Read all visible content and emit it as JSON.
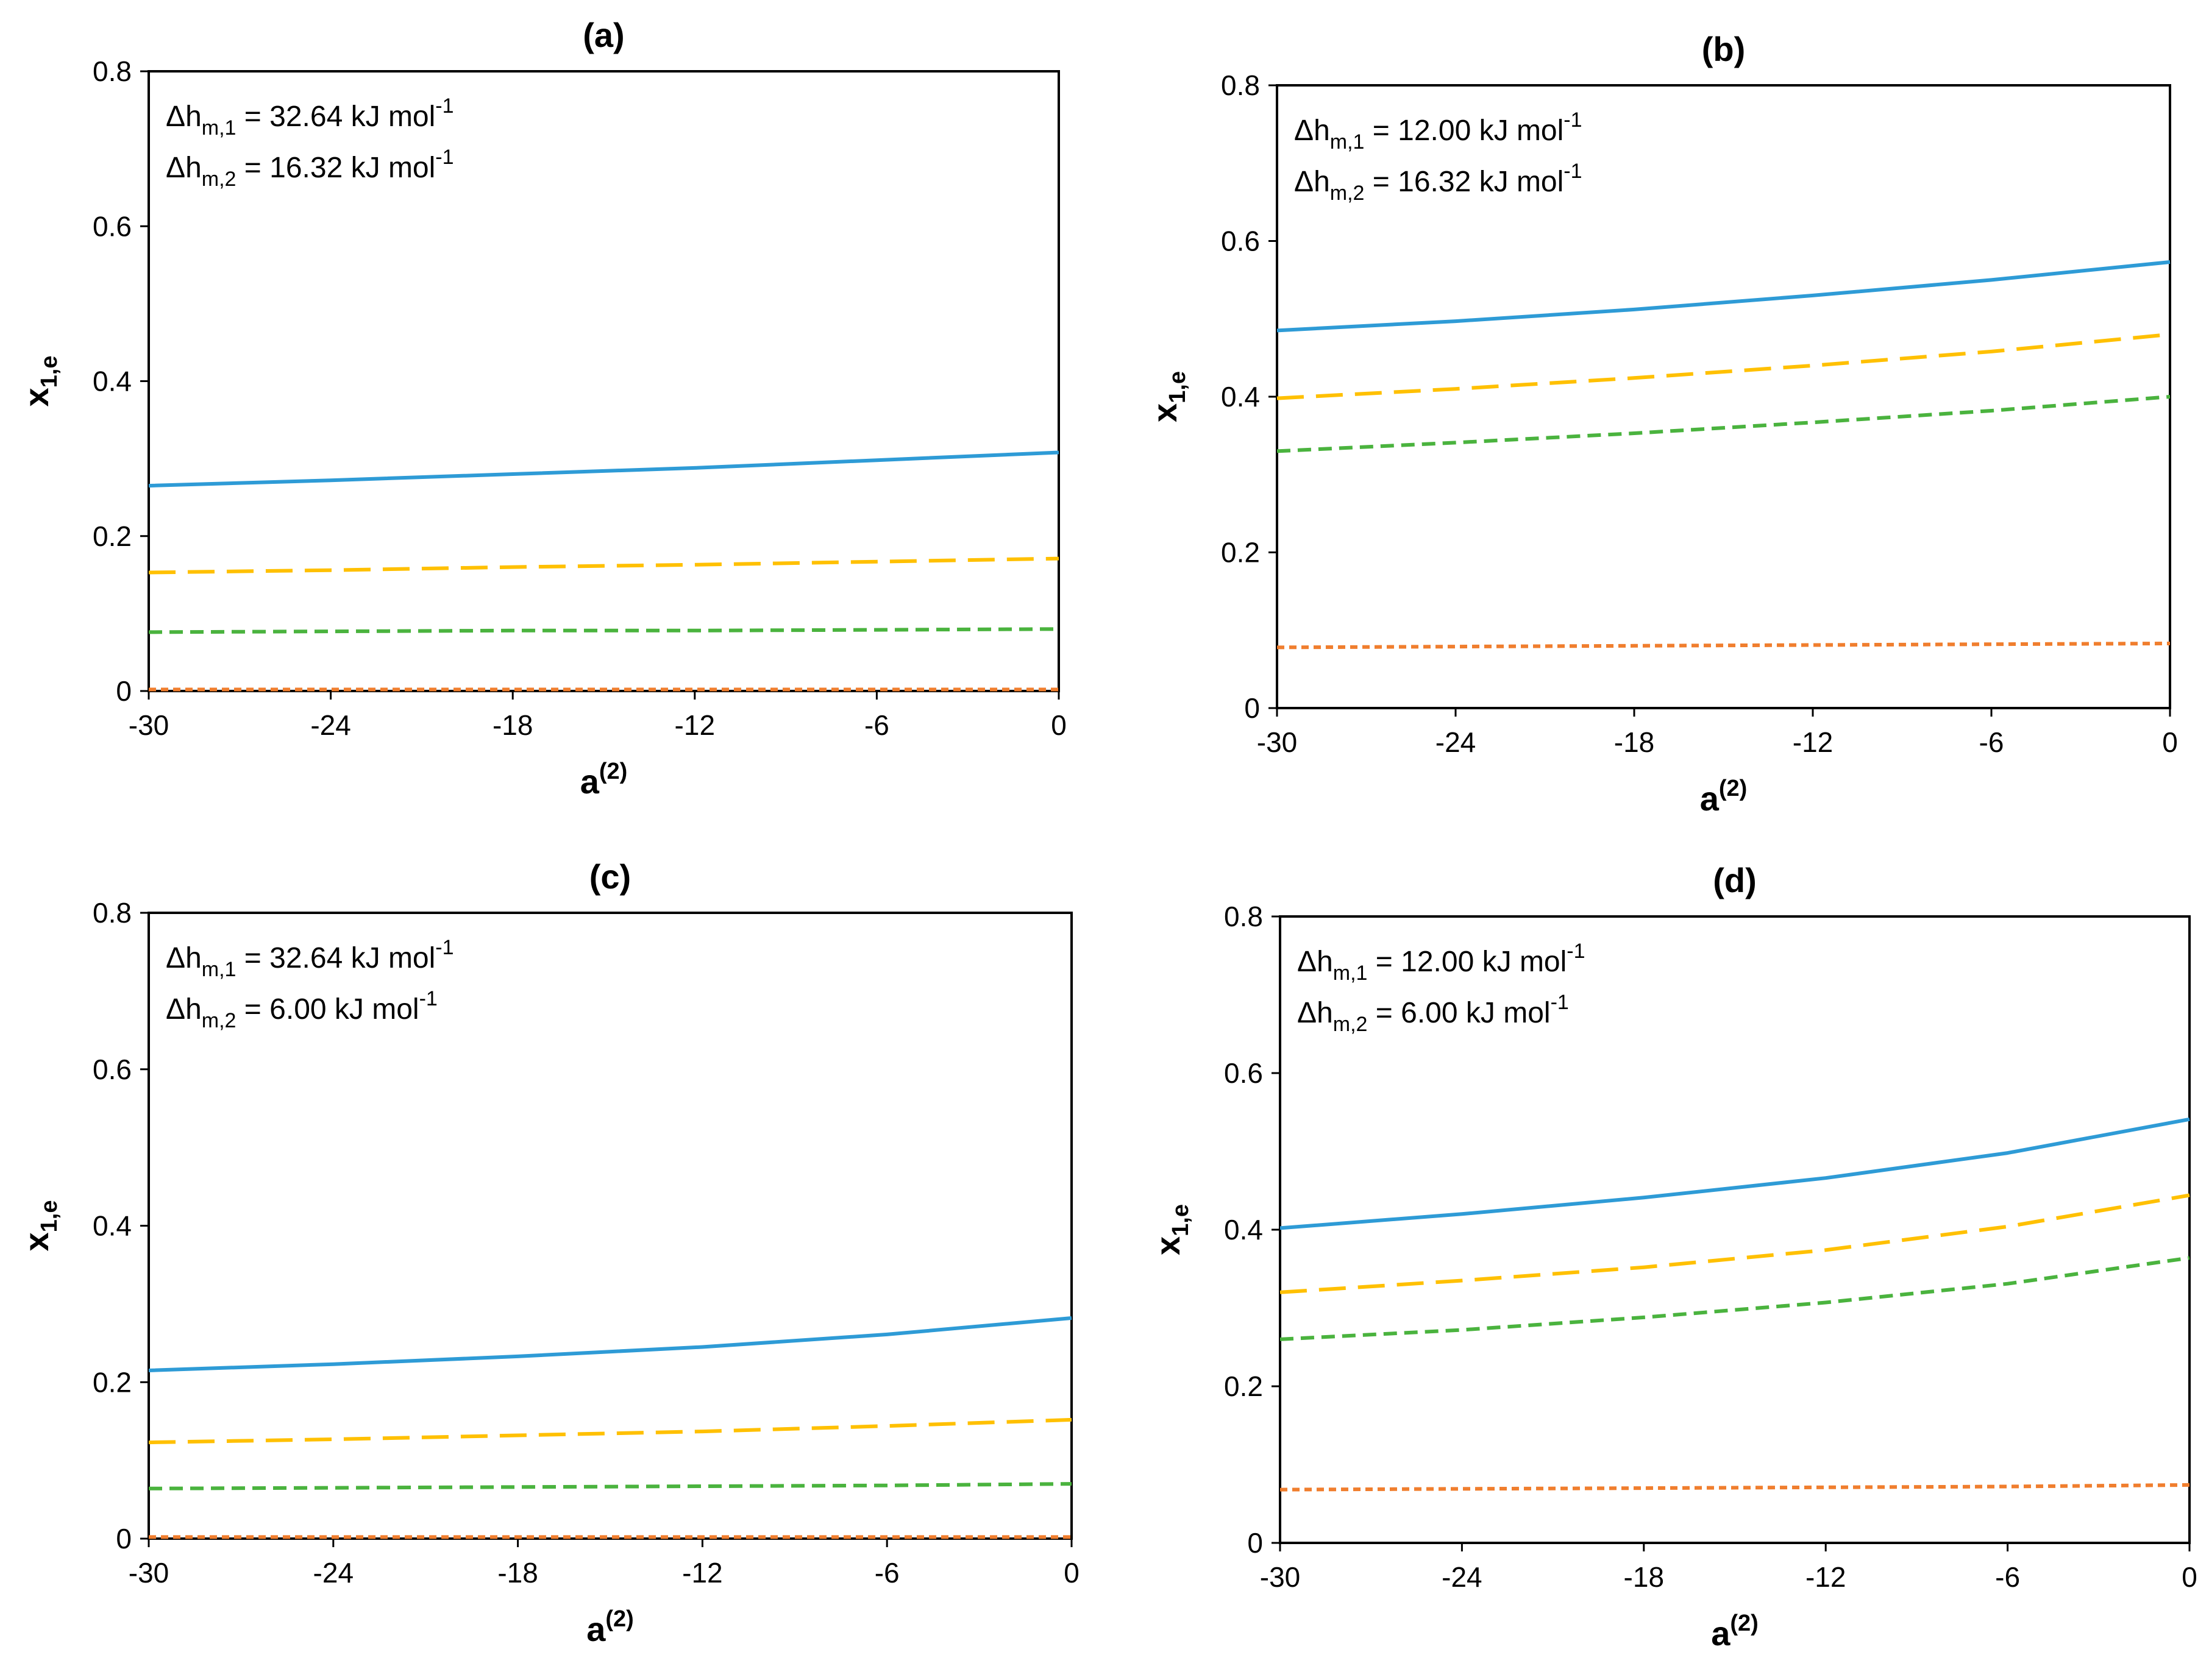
{
  "colors": {
    "series1": "#2e9bd6",
    "series2": "#ffc000",
    "series3": "#4ab33e",
    "series4": "#f07e2e"
  },
  "chart_data": [
    {
      "type": "line",
      "title": "(a)",
      "xlabel": "a",
      "xlabel_sup": "(2)",
      "ylabel": "x",
      "ylabel_sub": "1,e",
      "xlim": [
        -30,
        0
      ],
      "ylim": [
        0,
        0.8
      ],
      "xticks": [
        "-30",
        "-24",
        "-18",
        "-12",
        "-6",
        "0"
      ],
      "yticks": [
        "0",
        "0.2",
        "0.4",
        "0.6",
        "0.8"
      ],
      "grid": false,
      "annotations": [
        {
          "pre": "Δh",
          "sub": "m,1",
          "mid": " = 32.64 kJ mol",
          "sup": "-1"
        },
        {
          "pre": "Δh",
          "sub": "m,2",
          "mid": " = 16.32 kJ mol",
          "sup": "-1"
        }
      ],
      "x": [
        -30,
        -24,
        -18,
        -12,
        -6,
        0
      ],
      "series": [
        {
          "style": "solid",
          "values": [
            0.265,
            0.272,
            0.28,
            0.288,
            0.298,
            0.308
          ]
        },
        {
          "style": "long-dash",
          "values": [
            0.153,
            0.156,
            0.16,
            0.163,
            0.167,
            0.171
          ]
        },
        {
          "style": "dash",
          "values": [
            0.076,
            0.077,
            0.078,
            0.078,
            0.079,
            0.08
          ]
        },
        {
          "style": "dot",
          "values": [
            0.002,
            0.002,
            0.002,
            0.002,
            0.002,
            0.002
          ]
        }
      ]
    },
    {
      "type": "line",
      "title": "(b)",
      "xlabel": "a",
      "xlabel_sup": "(2)",
      "ylabel": "x",
      "ylabel_sub": "1,e",
      "xlim": [
        -30,
        0
      ],
      "ylim": [
        0,
        0.8
      ],
      "xticks": [
        "-30",
        "-24",
        "-18",
        "-12",
        "-6",
        "0"
      ],
      "yticks": [
        "0",
        "0.2",
        "0.4",
        "0.6",
        "0.8"
      ],
      "grid": false,
      "annotations": [
        {
          "pre": "Δh",
          "sub": "m,1",
          "mid": " = 12.00 kJ mol",
          "sup": "-1"
        },
        {
          "pre": "Δh",
          "sub": "m,2",
          "mid": " = 16.32 kJ mol",
          "sup": "-1"
        }
      ],
      "x": [
        -30,
        -24,
        -18,
        -12,
        -6,
        0
      ],
      "series": [
        {
          "style": "solid",
          "values": [
            0.485,
            0.497,
            0.512,
            0.53,
            0.55,
            0.573
          ]
        },
        {
          "style": "long-dash",
          "values": [
            0.398,
            0.41,
            0.424,
            0.44,
            0.458,
            0.48
          ]
        },
        {
          "style": "dash",
          "values": [
            0.33,
            0.341,
            0.353,
            0.367,
            0.382,
            0.4
          ]
        },
        {
          "style": "dot",
          "values": [
            0.078,
            0.079,
            0.08,
            0.081,
            0.082,
            0.083
          ]
        }
      ]
    },
    {
      "type": "line",
      "title": "(c)",
      "xlabel": "a",
      "xlabel_sup": "(2)",
      "ylabel": "x",
      "ylabel_sub": "1,e",
      "xlim": [
        -30,
        0
      ],
      "ylim": [
        0,
        0.8
      ],
      "xticks": [
        "-30",
        "-24",
        "-18",
        "-12",
        "-6",
        "0"
      ],
      "yticks": [
        "0",
        "0.2",
        "0.4",
        "0.6",
        "0.8"
      ],
      "grid": false,
      "annotations": [
        {
          "pre": "Δh",
          "sub": "m,1",
          "mid": " = 32.64 kJ mol",
          "sup": "-1"
        },
        {
          "pre": "Δh",
          "sub": "m,2",
          "mid": " = 6.00 kJ mol",
          "sup": "-1"
        }
      ],
      "x": [
        -30,
        -24,
        -18,
        -12,
        -6,
        0
      ],
      "series": [
        {
          "style": "solid",
          "values": [
            0.215,
            0.223,
            0.233,
            0.245,
            0.261,
            0.282
          ]
        },
        {
          "style": "long-dash",
          "values": [
            0.123,
            0.127,
            0.132,
            0.137,
            0.144,
            0.152
          ]
        },
        {
          "style": "dash",
          "values": [
            0.064,
            0.065,
            0.066,
            0.067,
            0.068,
            0.07
          ]
        },
        {
          "style": "dot",
          "values": [
            0.002,
            0.002,
            0.002,
            0.002,
            0.002,
            0.002
          ]
        }
      ]
    },
    {
      "type": "line",
      "title": "(d)",
      "xlabel": "a",
      "xlabel_sup": "(2)",
      "ylabel": "x",
      "ylabel_sub": "1,e",
      "xlim": [
        -30,
        0
      ],
      "ylim": [
        0,
        0.8
      ],
      "xticks": [
        "-30",
        "-24",
        "-18",
        "-12",
        "-6",
        "0"
      ],
      "yticks": [
        "0",
        "0.2",
        "0.4",
        "0.6",
        "0.8"
      ],
      "grid": false,
      "annotations": [
        {
          "pre": "Δh",
          "sub": "m,1",
          "mid": " = 12.00 kJ mol",
          "sup": "-1"
        },
        {
          "pre": "Δh",
          "sub": "m,2",
          "mid": " = 6.00 kJ mol",
          "sup": "-1"
        }
      ],
      "x": [
        -30,
        -24,
        -18,
        -12,
        -6,
        0
      ],
      "series": [
        {
          "style": "solid",
          "values": [
            0.402,
            0.42,
            0.441,
            0.466,
            0.498,
            0.541
          ]
        },
        {
          "style": "long-dash",
          "values": [
            0.32,
            0.335,
            0.352,
            0.374,
            0.404,
            0.444
          ]
        },
        {
          "style": "dash",
          "values": [
            0.26,
            0.272,
            0.288,
            0.307,
            0.331,
            0.364
          ]
        },
        {
          "style": "dot",
          "values": [
            0.068,
            0.069,
            0.07,
            0.071,
            0.072,
            0.074
          ]
        }
      ]
    }
  ]
}
